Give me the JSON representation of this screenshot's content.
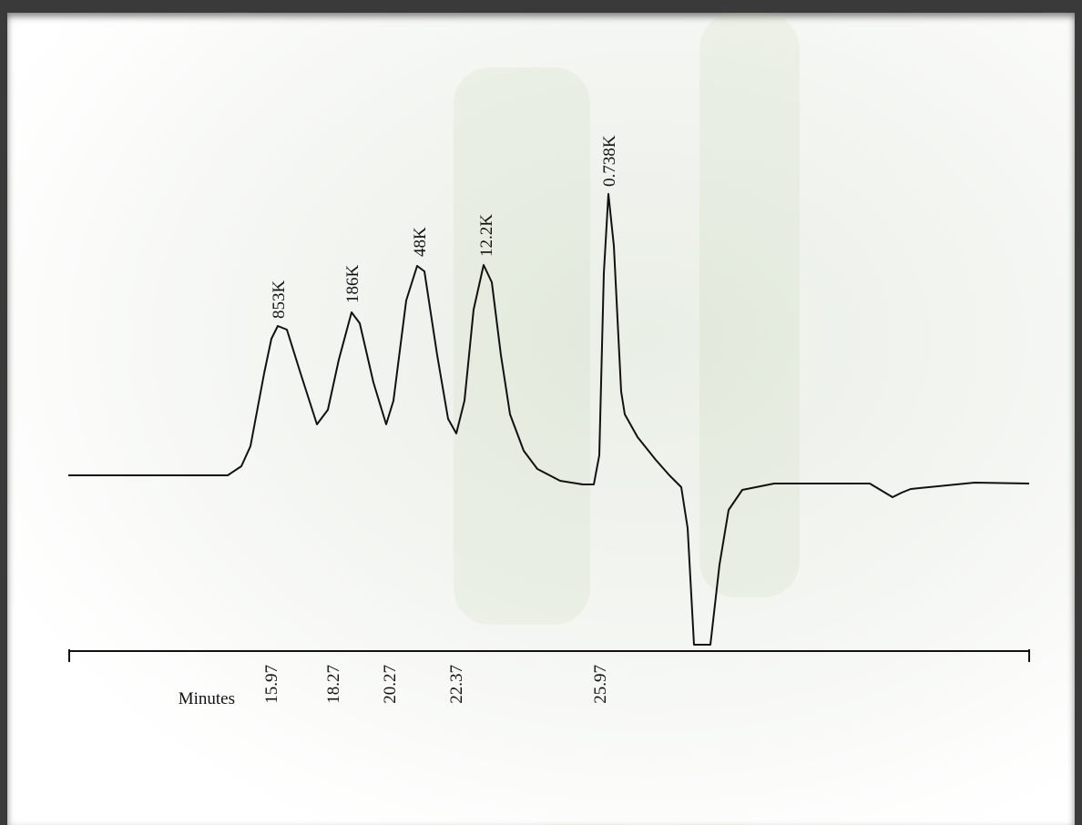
{
  "chart_data": {
    "type": "line",
    "x_label": "Minutes",
    "xticks": [
      15.97,
      18.27,
      20.27,
      22.37,
      25.97
    ],
    "annotations": [
      "853K",
      "186K",
      "48K",
      "12.2K",
      "0.738K"
    ],
    "color": "#111111"
  }
}
